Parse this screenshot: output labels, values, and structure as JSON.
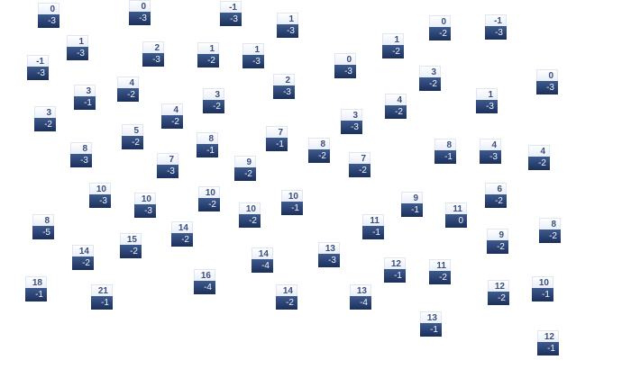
{
  "tiles": [
    {
      "top": "0",
      "bottom": "-3"
    },
    {
      "top": "0",
      "bottom": "-3"
    },
    {
      "top": "-1",
      "bottom": "-3"
    },
    {
      "top": "1",
      "bottom": "-3"
    },
    {
      "top": "1",
      "bottom": "-3"
    },
    {
      "top": "2",
      "bottom": "-3"
    },
    {
      "top": "1",
      "bottom": "-2"
    },
    {
      "top": "1",
      "bottom": "-3"
    },
    {
      "top": "-1",
      "bottom": "-3"
    },
    {
      "top": "3",
      "bottom": "-1"
    },
    {
      "top": "4",
      "bottom": "-2"
    },
    {
      "top": "3",
      "bottom": "-2"
    },
    {
      "top": "2",
      "bottom": "-3"
    },
    {
      "top": "3",
      "bottom": "-2"
    },
    {
      "top": "4",
      "bottom": "-2"
    },
    {
      "top": "5",
      "bottom": "-2"
    },
    {
      "top": "8",
      "bottom": "-1"
    },
    {
      "top": "7",
      "bottom": "-1"
    },
    {
      "top": "8",
      "bottom": "-3"
    },
    {
      "top": "7",
      "bottom": "-3"
    },
    {
      "top": "9",
      "bottom": "-2"
    },
    {
      "top": "8",
      "bottom": "-2"
    },
    {
      "top": "0",
      "bottom": "-3"
    },
    {
      "top": "1",
      "bottom": "-2"
    },
    {
      "top": "0",
      "bottom": "-2"
    },
    {
      "top": "-1",
      "bottom": "-3"
    },
    {
      "top": "3",
      "bottom": "-2"
    },
    {
      "top": "0",
      "bottom": "-3"
    },
    {
      "top": "4",
      "bottom": "-2"
    },
    {
      "top": "1",
      "bottom": "-3"
    },
    {
      "top": "3",
      "bottom": "-3"
    },
    {
      "top": "7",
      "bottom": "-2"
    },
    {
      "top": "8",
      "bottom": "-1"
    },
    {
      "top": "4",
      "bottom": "-3"
    },
    {
      "top": "4",
      "bottom": "-2"
    },
    {
      "top": "10",
      "bottom": "-3"
    },
    {
      "top": "10",
      "bottom": "-3"
    },
    {
      "top": "10",
      "bottom": "-2"
    },
    {
      "top": "10",
      "bottom": "-2"
    },
    {
      "top": "10",
      "bottom": "-1"
    },
    {
      "top": "8",
      "bottom": "-5"
    },
    {
      "top": "15",
      "bottom": "-2"
    },
    {
      "top": "14",
      "bottom": "-2"
    },
    {
      "top": "14",
      "bottom": "-2"
    },
    {
      "top": "14",
      "bottom": "-4"
    },
    {
      "top": "16",
      "bottom": "-4"
    },
    {
      "top": "18",
      "bottom": "-1"
    },
    {
      "top": "21",
      "bottom": "-1"
    },
    {
      "top": "14",
      "bottom": "-2"
    },
    {
      "top": "6",
      "bottom": "-2"
    },
    {
      "top": "9",
      "bottom": "-1"
    },
    {
      "top": "11",
      "bottom": "0"
    },
    {
      "top": "11",
      "bottom": "-1"
    },
    {
      "top": "9",
      "bottom": "-2"
    },
    {
      "top": "8",
      "bottom": "-2"
    },
    {
      "top": "13",
      "bottom": "-3"
    },
    {
      "top": "12",
      "bottom": "-1"
    },
    {
      "top": "11",
      "bottom": "-2"
    },
    {
      "top": "12",
      "bottom": "-2"
    },
    {
      "top": "10",
      "bottom": "-1"
    },
    {
      "top": "13",
      "bottom": "-4"
    },
    {
      "top": "13",
      "bottom": "-1"
    },
    {
      "top": "12",
      "bottom": "-1"
    }
  ]
}
